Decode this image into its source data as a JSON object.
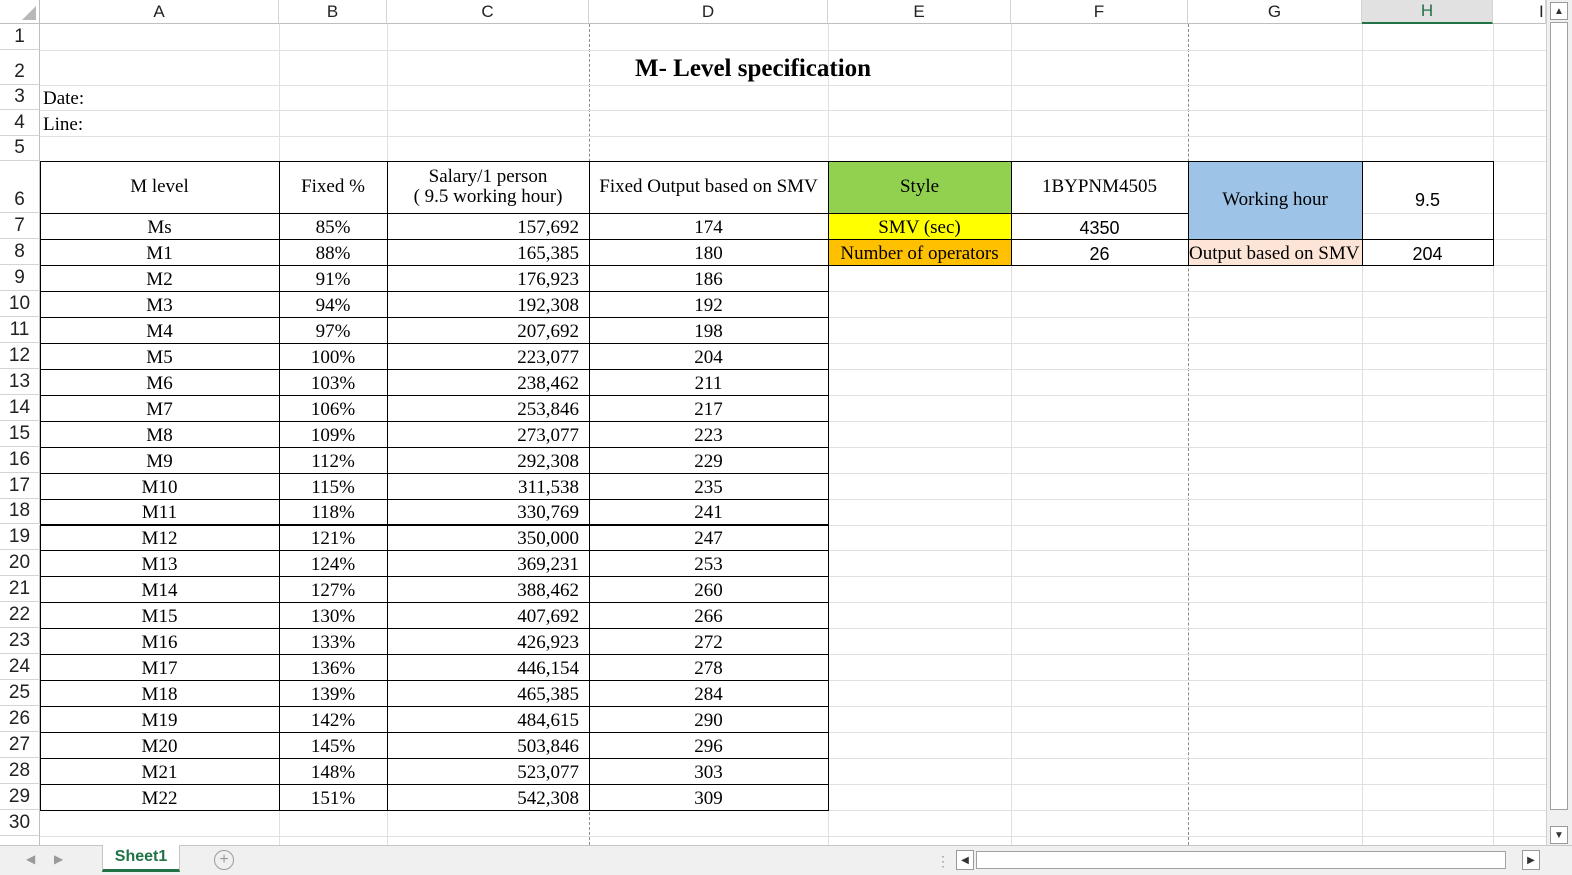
{
  "columns": [
    "A",
    "B",
    "C",
    "D",
    "E",
    "F",
    "G",
    "H"
  ],
  "selected_column": "H",
  "partial_column": "I",
  "rows": [
    "1",
    "2",
    "3",
    "4",
    "5",
    "6",
    "7",
    "8",
    "9",
    "10",
    "11",
    "12",
    "13",
    "14",
    "15",
    "16",
    "17",
    "18",
    "19",
    "20",
    "21",
    "22",
    "23",
    "24",
    "25",
    "26",
    "27",
    "28",
    "29",
    "30"
  ],
  "title": "M- Level specification",
  "date_label": "Date:",
  "line_label": "Line:",
  "table": {
    "headers": [
      "M level",
      "Fixed %",
      "Salary/1 person",
      "( 9.5 working hour)",
      "Fixed Output based on SMV"
    ],
    "rows": [
      [
        "Ms",
        "85%",
        "157,692",
        "174"
      ],
      [
        "M1",
        "88%",
        "165,385",
        "180"
      ],
      [
        "M2",
        "91%",
        "176,923",
        "186"
      ],
      [
        "M3",
        "94%",
        "192,308",
        "192"
      ],
      [
        "M4",
        "97%",
        "207,692",
        "198"
      ],
      [
        "M5",
        "100%",
        "223,077",
        "204"
      ],
      [
        "M6",
        "103%",
        "238,462",
        "211"
      ],
      [
        "M7",
        "106%",
        "253,846",
        "217"
      ],
      [
        "M8",
        "109%",
        "273,077",
        "223"
      ],
      [
        "M9",
        "112%",
        "292,308",
        "229"
      ],
      [
        "M10",
        "115%",
        "311,538",
        "235"
      ],
      [
        "M11",
        "118%",
        "330,769",
        "241"
      ],
      [
        "M12",
        "121%",
        "350,000",
        "247"
      ],
      [
        "M13",
        "124%",
        "369,231",
        "253"
      ],
      [
        "M14",
        "127%",
        "388,462",
        "260"
      ],
      [
        "M15",
        "130%",
        "407,692",
        "266"
      ],
      [
        "M16",
        "133%",
        "426,923",
        "272"
      ],
      [
        "M17",
        "136%",
        "446,154",
        "278"
      ],
      [
        "M18",
        "139%",
        "465,385",
        "284"
      ],
      [
        "M19",
        "142%",
        "484,615",
        "290"
      ],
      [
        "M20",
        "145%",
        "503,846",
        "296"
      ],
      [
        "M21",
        "148%",
        "523,077",
        "303"
      ],
      [
        "M22",
        "151%",
        "542,308",
        "309"
      ]
    ]
  },
  "info": {
    "style_label": "Style",
    "style_value": "1BYPNM4505",
    "smv_label": "SMV (sec)",
    "smv_value": "4350",
    "operators_label": "Number of operators",
    "operators_value": "26",
    "working_hour_label": "Working hour",
    "working_hour_value": "9.5",
    "output_label": "Output based on SMV",
    "output_value": "204"
  },
  "colors": {
    "style_bg": "#92d050",
    "smv_bg": "#ffff00",
    "operators_bg": "#ffc000",
    "working_hour_bg": "#9dc3e6",
    "output_bg": "#fce4d6",
    "accent": "#217346"
  },
  "sheet_tab": "Sheet1"
}
